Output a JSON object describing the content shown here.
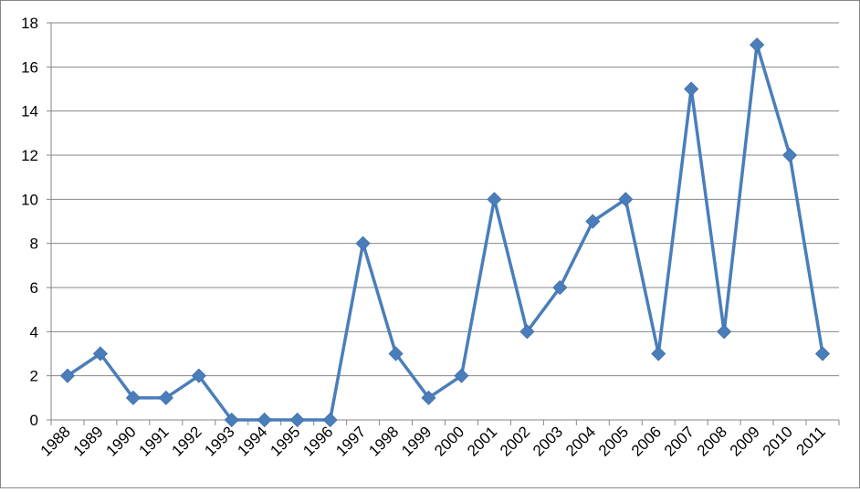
{
  "chart_data": {
    "type": "line",
    "title": "",
    "xlabel": "",
    "ylabel": "",
    "categories": [
      "1988",
      "1989",
      "1990",
      "1991",
      "1992",
      "1993",
      "1994",
      "1995",
      "1996",
      "1997",
      "1998",
      "1999",
      "2000",
      "2001",
      "2002",
      "2003",
      "2004",
      "2005",
      "2006",
      "2007",
      "2008",
      "2009",
      "2010",
      "2011"
    ],
    "series": [
      {
        "values": [
          2,
          3,
          1,
          1,
          2,
          0,
          0,
          0,
          0,
          8,
          3,
          1,
          2,
          10,
          4,
          6,
          9,
          10,
          3,
          15,
          4,
          17,
          12,
          3
        ],
        "color": "#4a7ebb",
        "marker": "diamond"
      }
    ],
    "ylim": [
      0,
      18
    ],
    "yticks": [
      0,
      2,
      4,
      6,
      8,
      10,
      12,
      14,
      16,
      18
    ],
    "grid": "horizontal",
    "legend": "none",
    "colors": {
      "gridline": "#868686",
      "axis": "#868686",
      "line": "#4a7ebb",
      "marker_fill": "#4a7ebb"
    }
  }
}
